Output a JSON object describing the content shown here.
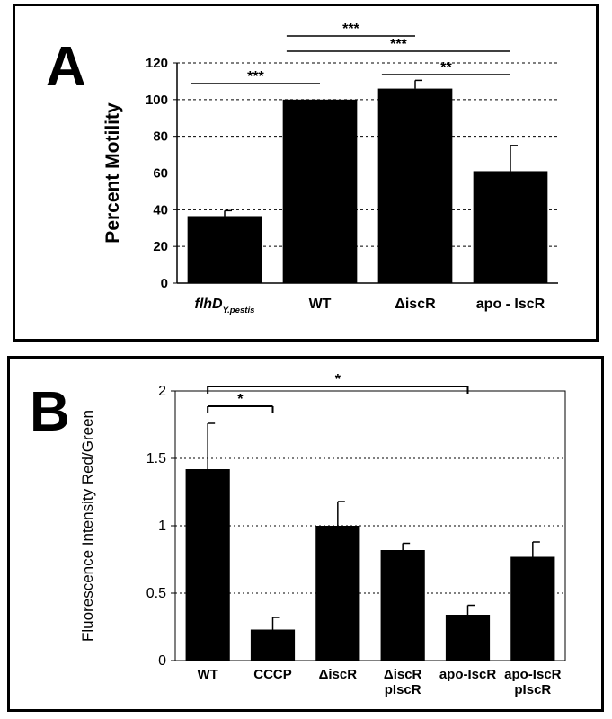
{
  "chart_data": [
    {
      "type": "bar",
      "panel_label": "A",
      "ylabel": "Percent Motility",
      "ylim": [
        0,
        120
      ],
      "yticks": [
        0,
        20,
        40,
        60,
        80,
        100,
        120
      ],
      "grid": "horizontal dashed",
      "categories": [
        {
          "main": "flhD",
          "sub": "Y.pestis",
          "line2": ""
        },
        {
          "main": "WT",
          "sub": "",
          "line2": ""
        },
        {
          "main": "ΔiscR",
          "sub": "",
          "line2": ""
        },
        {
          "main": "apo - IscR",
          "sub": "",
          "line2": ""
        }
      ],
      "values": [
        36.5,
        100,
        106,
        61
      ],
      "errors": [
        3,
        0,
        4.5,
        14
      ],
      "significance": [
        {
          "from": 0,
          "to": 1,
          "label": "***"
        },
        {
          "from": 1,
          "to": 2,
          "label": "***"
        },
        {
          "from": 1,
          "to": 3,
          "label": "***"
        },
        {
          "from": 2,
          "to": 3,
          "label": "**"
        }
      ]
    },
    {
      "type": "bar",
      "panel_label": "B",
      "ylabel": "Fluorescence Intensity Red/Green",
      "ylim": [
        0,
        2
      ],
      "yticks": [
        0,
        0.5,
        1,
        1.5,
        2
      ],
      "grid": "horizontal dotted",
      "categories": [
        {
          "main": "WT",
          "sub": "",
          "line2": ""
        },
        {
          "main": "CCCP",
          "sub": "",
          "line2": ""
        },
        {
          "main": "ΔiscR",
          "sub": "",
          "line2": ""
        },
        {
          "main": "ΔiscR",
          "sub": "",
          "line2": "pIscR"
        },
        {
          "main": "apo-IscR",
          "sub": "",
          "line2": ""
        },
        {
          "main": "apo-IscR",
          "sub": "",
          "line2": "pIscR"
        }
      ],
      "values": [
        1.42,
        0.23,
        1.0,
        0.82,
        0.34,
        0.77
      ],
      "errors": [
        0.34,
        0.09,
        0.18,
        0.05,
        0.07,
        0.11
      ],
      "significance": [
        {
          "from": 0,
          "to": 1,
          "label": "*"
        },
        {
          "from": 0,
          "to": 4,
          "label": "*"
        }
      ]
    }
  ]
}
